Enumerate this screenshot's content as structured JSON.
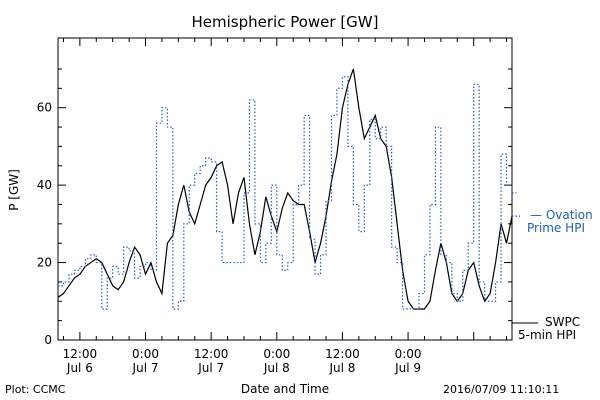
{
  "chart_data": {
    "type": "line",
    "title": "Hemispheric Power [GW]",
    "ylabel": "P [GW]",
    "xlabel": "Date and Time",
    "x_unit": "hours",
    "xlim": [
      8,
      91
    ],
    "ylim": [
      0,
      78
    ],
    "y_ticks": [
      0,
      20,
      40,
      60
    ],
    "x_ticks": [
      {
        "x": 12,
        "line1": "12:00",
        "line2": "Jul 6"
      },
      {
        "x": 24,
        "line1": "0:00",
        "line2": "Jul 7"
      },
      {
        "x": 36,
        "line1": "12:00",
        "line2": "Jul 7"
      },
      {
        "x": 48,
        "line1": "0:00",
        "line2": "Jul 8"
      },
      {
        "x": 60,
        "line1": "12:00",
        "line2": "Jul 8"
      },
      {
        "x": 72,
        "line1": "0:00",
        "line2": "Jul 9"
      }
    ],
    "grid": false,
    "series": [
      {
        "name": "SWPC 5-min HPI",
        "style": "solid",
        "color": "#000000",
        "x": [
          8,
          9,
          10,
          11,
          12,
          13,
          14,
          15,
          16,
          17,
          18,
          19,
          20,
          21,
          22,
          23,
          24,
          25,
          26,
          27,
          28,
          29,
          30,
          31,
          32,
          33,
          34,
          35,
          36,
          37,
          38,
          39,
          40,
          41,
          42,
          43,
          44,
          45,
          46,
          47,
          48,
          49,
          50,
          51,
          52,
          53,
          54,
          55,
          56,
          57,
          58,
          59,
          60,
          61,
          62,
          63,
          64,
          65,
          66,
          67,
          68,
          69,
          70,
          71,
          72,
          73,
          74,
          75,
          76,
          77,
          78,
          79,
          80,
          81,
          82,
          83,
          84,
          85,
          86,
          87,
          88,
          89,
          90,
          91
        ],
        "values": [
          11,
          12,
          14,
          16,
          17,
          19,
          20,
          21,
          20,
          17,
          14,
          13,
          15,
          20,
          24,
          22,
          17,
          20,
          15,
          12,
          25,
          27,
          35,
          40,
          33,
          30,
          35,
          40,
          42,
          45,
          46,
          40,
          30,
          38,
          42,
          30,
          22,
          28,
          37,
          32,
          28,
          34,
          38,
          36,
          35,
          35,
          28,
          20,
          25,
          32,
          41,
          48,
          60,
          66,
          70,
          60,
          52,
          55,
          58,
          52,
          50,
          42,
          30,
          18,
          10,
          8,
          8,
          8,
          10,
          18,
          25,
          20,
          12,
          10,
          12,
          18,
          20,
          14,
          10,
          12,
          20,
          30,
          25,
          32
        ]
      },
      {
        "name": "Ovation Prime HPI",
        "style": "dotted",
        "color": "#1f5fbf",
        "x": [
          8,
          9,
          10,
          11,
          12,
          13,
          14,
          15,
          16,
          17,
          18,
          19,
          20,
          21,
          22,
          23,
          24,
          25,
          26,
          27,
          28,
          29,
          30,
          31,
          32,
          33,
          34,
          35,
          36,
          37,
          38,
          39,
          40,
          41,
          42,
          43,
          44,
          45,
          46,
          47,
          48,
          49,
          50,
          51,
          52,
          53,
          54,
          55,
          56,
          57,
          58,
          59,
          60,
          61,
          62,
          63,
          64,
          65,
          66,
          67,
          68,
          69,
          70,
          71,
          72,
          73,
          74,
          75,
          76,
          77,
          78,
          79,
          80,
          81,
          82,
          83,
          84,
          85,
          86,
          87,
          88,
          89,
          90,
          91
        ],
        "values": [
          14,
          15,
          17,
          18,
          19,
          21,
          22,
          20,
          8,
          16,
          19,
          17,
          24,
          23,
          16,
          19,
          20,
          18,
          56,
          60,
          55,
          8,
          10,
          30,
          40,
          43,
          45,
          47,
          46,
          28,
          20,
          20,
          20,
          20,
          38,
          62,
          30,
          20,
          25,
          40,
          22,
          18,
          20,
          35,
          40,
          58,
          26,
          17,
          22,
          36,
          58,
          65,
          68,
          50,
          35,
          28,
          40,
          57,
          52,
          55,
          50,
          24,
          20,
          8,
          8,
          8,
          12,
          22,
          35,
          55,
          22,
          20,
          12,
          10,
          18,
          25,
          66,
          15,
          10,
          10,
          15,
          48,
          40,
          38
        ]
      }
    ],
    "legend": [
      {
        "line1": "— Ovation",
        "line2": "Prime HPI",
        "series": "Ovation Prime HPI",
        "placement": "right"
      },
      {
        "line1": "SWPC",
        "line2": "5-min HPI",
        "series": "SWPC 5-min HPI",
        "placement": "right-bottom"
      }
    ],
    "footer_left": "Plot: CCMC",
    "footer_right": "2016/07/09 11:10:11"
  }
}
